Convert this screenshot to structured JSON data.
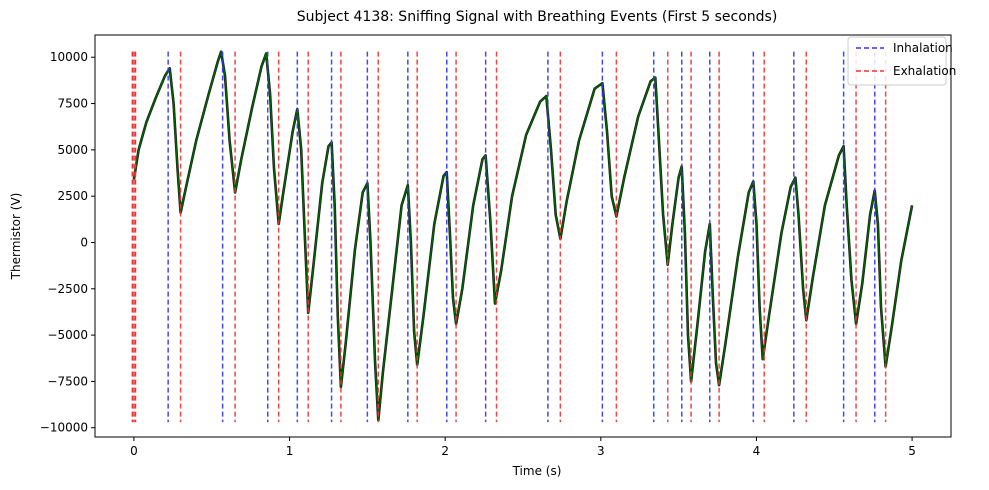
{
  "chart_data": {
    "type": "line",
    "title": "Subject 4138: Sniffing Signal with Breathing Events (First 5 seconds)",
    "xlabel": "Time (s)",
    "ylabel": "Thermistor (V)",
    "xlim": [
      -0.25,
      5.25
    ],
    "ylim": [
      -10500,
      11200
    ],
    "x_ticks": [
      0,
      1,
      2,
      3,
      4,
      5
    ],
    "x_tick_labels": [
      "0",
      "1",
      "2",
      "3",
      "4",
      "5"
    ],
    "y_ticks": [
      -10000,
      -7500,
      -5000,
      -2500,
      0,
      2500,
      5000,
      7500,
      10000
    ],
    "y_tick_labels": [
      "−10000",
      "−7500",
      "−5000",
      "−2500",
      "0",
      "2500",
      "5000",
      "7500",
      "10000"
    ],
    "grid": false,
    "legend_position": "top-right",
    "colors": {
      "signal": "#006400",
      "signal_outline": "#1a1a1a",
      "inhalation": "#3333ee",
      "exhalation": "#ee3333"
    },
    "signal": {
      "name": "",
      "color": "#006400",
      "points": [
        [
          0.0,
          3400
        ],
        [
          0.03,
          5000
        ],
        [
          0.08,
          6500
        ],
        [
          0.14,
          7800
        ],
        [
          0.2,
          9000
        ],
        [
          0.23,
          9400
        ],
        [
          0.255,
          7500
        ],
        [
          0.28,
          4000
        ],
        [
          0.3,
          1600
        ],
        [
          0.33,
          2800
        ],
        [
          0.4,
          5500
        ],
        [
          0.48,
          8000
        ],
        [
          0.54,
          9800
        ],
        [
          0.56,
          10300
        ],
        [
          0.585,
          9000
        ],
        [
          0.615,
          5500
        ],
        [
          0.65,
          2700
        ],
        [
          0.69,
          4500
        ],
        [
          0.76,
          7300
        ],
        [
          0.82,
          9500
        ],
        [
          0.85,
          10200
        ],
        [
          0.875,
          8000
        ],
        [
          0.9,
          4000
        ],
        [
          0.93,
          1000
        ],
        [
          0.96,
          2700
        ],
        [
          1.02,
          6000
        ],
        [
          1.05,
          7200
        ],
        [
          1.075,
          5000
        ],
        [
          1.1,
          0
        ],
        [
          1.12,
          -3800
        ],
        [
          1.15,
          -1500
        ],
        [
          1.21,
          3200
        ],
        [
          1.25,
          5200
        ],
        [
          1.27,
          5400
        ],
        [
          1.29,
          2000
        ],
        [
          1.31,
          -4000
        ],
        [
          1.33,
          -7800
        ],
        [
          1.36,
          -5500
        ],
        [
          1.42,
          -400
        ],
        [
          1.47,
          2700
        ],
        [
          1.5,
          3200
        ],
        [
          1.52,
          0
        ],
        [
          1.55,
          -6500
        ],
        [
          1.57,
          -9600
        ],
        [
          1.6,
          -7000
        ],
        [
          1.66,
          -2500
        ],
        [
          1.72,
          2000
        ],
        [
          1.76,
          3100
        ],
        [
          1.78,
          0
        ],
        [
          1.8,
          -4800
        ],
        [
          1.82,
          -6600
        ],
        [
          1.86,
          -4000
        ],
        [
          1.93,
          1000
        ],
        [
          1.99,
          3600
        ],
        [
          2.01,
          3800
        ],
        [
          2.03,
          500
        ],
        [
          2.05,
          -3000
        ],
        [
          2.07,
          -4400
        ],
        [
          2.11,
          -2500
        ],
        [
          2.18,
          2000
        ],
        [
          2.24,
          4500
        ],
        [
          2.26,
          4700
        ],
        [
          2.29,
          1200
        ],
        [
          2.32,
          -3300
        ],
        [
          2.36,
          -1500
        ],
        [
          2.43,
          2500
        ],
        [
          2.52,
          5800
        ],
        [
          2.61,
          7600
        ],
        [
          2.65,
          7900
        ],
        [
          2.68,
          5000
        ],
        [
          2.71,
          1500
        ],
        [
          2.74,
          200
        ],
        [
          2.78,
          2200
        ],
        [
          2.86,
          5500
        ],
        [
          2.96,
          8300
        ],
        [
          3.01,
          8600
        ],
        [
          3.04,
          6000
        ],
        [
          3.07,
          2500
        ],
        [
          3.1,
          1400
        ],
        [
          3.15,
          3500
        ],
        [
          3.24,
          6800
        ],
        [
          3.32,
          8700
        ],
        [
          3.35,
          8900
        ],
        [
          3.37,
          6000
        ],
        [
          3.4,
          1500
        ],
        [
          3.43,
          -1200
        ],
        [
          3.46,
          1000
        ],
        [
          3.5,
          3500
        ],
        [
          3.52,
          4100
        ],
        [
          3.54,
          500
        ],
        [
          3.56,
          -5000
        ],
        [
          3.58,
          -7500
        ],
        [
          3.62,
          -4500
        ],
        [
          3.67,
          -500
        ],
        [
          3.7,
          1000
        ],
        [
          3.72,
          -3000
        ],
        [
          3.74,
          -6500
        ],
        [
          3.76,
          -7700
        ],
        [
          3.8,
          -5500
        ],
        [
          3.88,
          -800
        ],
        [
          3.95,
          2700
        ],
        [
          3.98,
          3300
        ],
        [
          4.0,
          1000
        ],
        [
          4.02,
          -3500
        ],
        [
          4.04,
          -6300
        ],
        [
          4.08,
          -4000
        ],
        [
          4.16,
          500
        ],
        [
          4.22,
          3000
        ],
        [
          4.25,
          3500
        ],
        [
          4.27,
          1500
        ],
        [
          4.3,
          -2500
        ],
        [
          4.32,
          -4200
        ],
        [
          4.36,
          -2000
        ],
        [
          4.44,
          2000
        ],
        [
          4.53,
          4700
        ],
        [
          4.56,
          5200
        ],
        [
          4.58,
          2000
        ],
        [
          4.61,
          -2000
        ],
        [
          4.64,
          -4400
        ],
        [
          4.68,
          -2200
        ],
        [
          4.73,
          1500
        ],
        [
          4.76,
          2800
        ],
        [
          4.78,
          1000
        ],
        [
          4.8,
          -3500
        ],
        [
          4.83,
          -6700
        ],
        [
          4.87,
          -4500
        ],
        [
          4.93,
          -1000
        ],
        [
          5.0,
          2000
        ]
      ]
    },
    "inhalation_times": [
      0.22,
      0.57,
      0.86,
      1.05,
      1.27,
      1.5,
      1.76,
      2.01,
      2.26,
      2.66,
      3.01,
      3.34,
      3.52,
      3.7,
      3.98,
      4.24,
      4.56,
      4.76
    ],
    "exhalation_times": [
      0.0,
      0.3,
      0.65,
      0.93,
      1.12,
      1.33,
      1.57,
      1.82,
      2.07,
      2.33,
      2.74,
      3.1,
      3.43,
      3.58,
      3.76,
      4.05,
      4.32,
      4.64,
      4.83
    ],
    "event_line_span": [
      -9700,
      10300
    ],
    "legend": [
      {
        "label": "Inhalation",
        "color": "#3333ee"
      },
      {
        "label": "Exhalation",
        "color": "#ee3333"
      }
    ]
  }
}
